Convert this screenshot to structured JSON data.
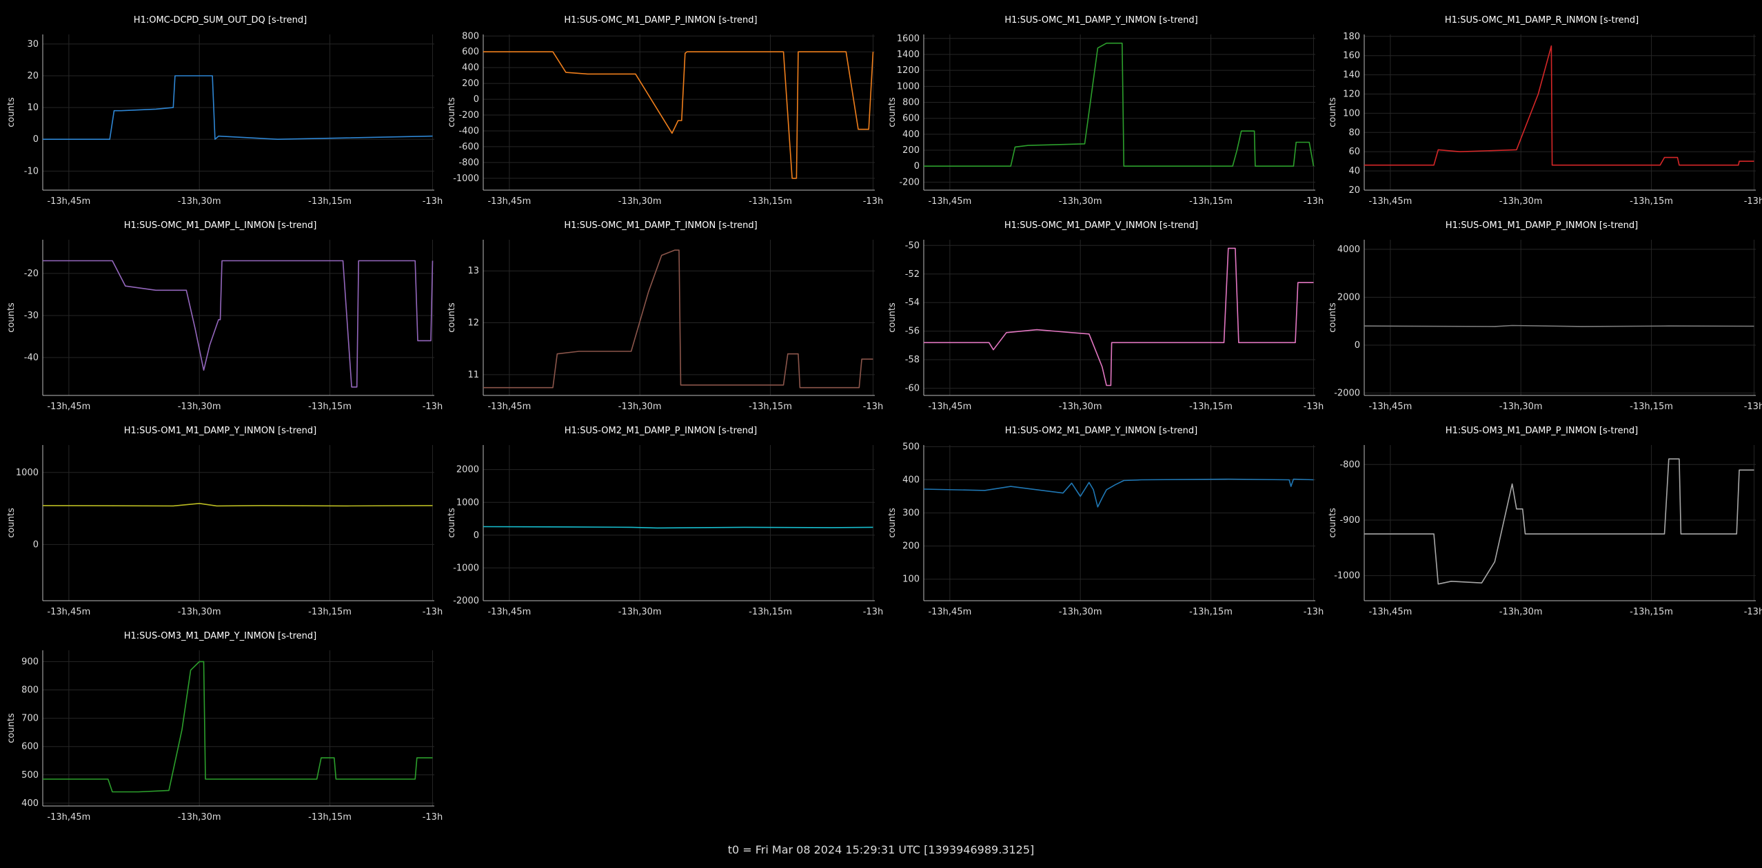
{
  "footer": "t0 = Fri Mar 08 2024 15:29:31 UTC [1393946989.3125]",
  "x_tick_labels": [
    "-13h,45m",
    "-13h,30m",
    "-13h,15m",
    "-13h"
  ],
  "chart_data": [
    {
      "type": "line",
      "title": "H1:OMC-DCPD_SUM_OUT_DQ [s-trend]",
      "ylabel": "counts",
      "color": "#2e86d4",
      "xlim": [
        -55,
        -10
      ],
      "ylim": [
        -16,
        33
      ],
      "yticks": [
        -10,
        0,
        10,
        20,
        30
      ],
      "x": [
        -55,
        -47.5,
        -47.3,
        -46.8,
        -46,
        -42,
        -40,
        -39.8,
        -35.5,
        -35.2,
        -34.8,
        -28,
        -10.2
      ],
      "y": [
        0,
        0,
        0,
        9,
        9,
        9.5,
        10,
        20,
        20,
        0,
        1,
        0,
        1
      ]
    },
    {
      "type": "line",
      "title": "H1:SUS-OMC_M1_DAMP_P_INMON [s-trend]",
      "ylabel": "counts",
      "color": "#f07f1c",
      "xlim": [
        -55,
        -10
      ],
      "ylim": [
        -1150,
        820
      ],
      "yticks": [
        -1000,
        -800,
        -600,
        -400,
        -200,
        0,
        200,
        400,
        600,
        800
      ],
      "x": [
        -55,
        -47,
        -45.5,
        -43,
        -37.5,
        -33.3,
        -32.6,
        -32.2,
        -31.8,
        -31.6,
        -20.5,
        -19.5,
        -19,
        -18.8,
        -13.5,
        -13.3,
        -11.9,
        -10.7,
        -10.2
      ],
      "y": [
        600,
        600,
        340,
        320,
        320,
        -430,
        -270,
        -270,
        580,
        600,
        600,
        -1000,
        -1000,
        600,
        600,
        600,
        -380,
        -380,
        600
      ]
    },
    {
      "type": "line",
      "title": "H1:SUS-OMC_M1_DAMP_Y_INMON [s-trend]",
      "ylabel": "counts",
      "color": "#2ca02c",
      "xlim": [
        -55,
        -10
      ],
      "ylim": [
        -300,
        1650
      ],
      "yticks": [
        -200,
        0,
        200,
        400,
        600,
        800,
        1000,
        1200,
        1400,
        1600
      ],
      "x": [
        -55,
        -45,
        -44.5,
        -43,
        -36.5,
        -35,
        -34,
        -32.2,
        -32,
        -19.5,
        -19,
        -18.5,
        -17,
        -16.9,
        -12.5,
        -12.2,
        -10.7,
        -10.2
      ],
      "y": [
        0,
        0,
        240,
        260,
        280,
        1480,
        1540,
        1540,
        0,
        0,
        200,
        440,
        440,
        0,
        0,
        300,
        300,
        0
      ]
    },
    {
      "type": "line",
      "title": "H1:SUS-OMC_M1_DAMP_R_INMON [s-trend]",
      "ylabel": "counts",
      "color": "#d62728",
      "xlim": [
        -55,
        -10
      ],
      "ylim": [
        20,
        182
      ],
      "yticks": [
        20,
        40,
        60,
        80,
        100,
        120,
        140,
        160,
        180
      ],
      "x": [
        -55,
        -47,
        -46.5,
        -44,
        -37.5,
        -35,
        -33.5,
        -33.4,
        -21,
        -20.5,
        -19,
        -18.8,
        -12,
        -11.9,
        -10.2
      ],
      "y": [
        46,
        46,
        62,
        60,
        62,
        120,
        170,
        46,
        46,
        54,
        54,
        46,
        46,
        50,
        50
      ]
    },
    {
      "type": "line",
      "title": "H1:SUS-OMC_M1_DAMP_L_INMON [s-trend]",
      "ylabel": "counts",
      "color": "#9467bd",
      "xlim": [
        -55,
        -10
      ],
      "ylim": [
        -49,
        -12
      ],
      "yticks": [
        -40,
        -30,
        -20
      ],
      "x": [
        -55,
        -47,
        -45.5,
        -42,
        -38.5,
        -37.5,
        -36.5,
        -35.8,
        -34.8,
        -34.6,
        -34.4,
        -20.5,
        -19.5,
        -18.9,
        -18.7,
        -12.2,
        -11.9,
        -10.4,
        -10.2
      ],
      "y": [
        -17,
        -17,
        -23,
        -24,
        -24,
        -33,
        -43,
        -37,
        -31,
        -31,
        -17,
        -17,
        -47,
        -47,
        -17,
        -17,
        -36,
        -36,
        -17
      ]
    },
    {
      "type": "line",
      "title": "H1:SUS-OMC_M1_DAMP_T_INMON [s-trend]",
      "ylabel": "counts",
      "color": "#8c564b",
      "xlim": [
        -55,
        -10
      ],
      "ylim": [
        10.6,
        13.6
      ],
      "yticks": [
        11,
        12,
        13
      ],
      "x": [
        -55,
        -47,
        -46.5,
        -44,
        -38,
        -36,
        -34.5,
        -33,
        -32.5,
        -32.3,
        -20.5,
        -20,
        -18.8,
        -18.6,
        -11.8,
        -11.5,
        -10.2
      ],
      "y": [
        10.75,
        10.75,
        11.4,
        11.45,
        11.45,
        12.6,
        13.3,
        13.4,
        13.4,
        10.8,
        10.8,
        11.4,
        11.4,
        10.75,
        10.75,
        11.3,
        11.3
      ]
    },
    {
      "type": "line",
      "title": "H1:SUS-OMC_M1_DAMP_V_INMON [s-trend]",
      "ylabel": "counts",
      "color": "#e377c2",
      "xlim": [
        -55,
        -10
      ],
      "ylim": [
        -60.5,
        -49.6
      ],
      "yticks": [
        -60,
        -58,
        -56,
        -54,
        -52,
        -50
      ],
      "x": [
        -55,
        -47.5,
        -47,
        -45.5,
        -42,
        -38,
        -36,
        -34.5,
        -34,
        -33.5,
        -33.4,
        -20.5,
        -20,
        -19.2,
        -18.8,
        -12.3,
        -12,
        -10.2
      ],
      "y": [
        -56.8,
        -56.8,
        -57.3,
        -56.1,
        -55.9,
        -56.1,
        -56.2,
        -58.5,
        -59.8,
        -59.8,
        -56.8,
        -56.8,
        -50.2,
        -50.2,
        -56.8,
        -56.8,
        -52.6,
        -52.6
      ]
    },
    {
      "type": "line",
      "title": "H1:SUS-OM1_M1_DAMP_P_INMON [s-trend]",
      "ylabel": "counts",
      "color": "#7f7f7f",
      "xlim": [
        -55,
        -10
      ],
      "ylim": [
        -2100,
        4400
      ],
      "yticks": [
        -2000,
        0,
        2000,
        4000
      ],
      "x": [
        -55,
        -40,
        -38,
        -30,
        -20,
        -10.2
      ],
      "y": [
        800,
        780,
        820,
        780,
        800,
        790
      ]
    },
    {
      "type": "line",
      "title": "H1:SUS-OM1_M1_DAMP_Y_INMON [s-trend]",
      "ylabel": "counts",
      "color": "#bcbd22",
      "xlim": [
        -55,
        -10
      ],
      "ylim": [
        -780,
        1380
      ],
      "yticks": [
        0,
        1000
      ],
      "x": [
        -55,
        -40,
        -37,
        -35,
        -30,
        -20,
        -10.2
      ],
      "y": [
        540,
        535,
        570,
        535,
        540,
        535,
        540
      ]
    },
    {
      "type": "line",
      "title": "H1:SUS-OM2_M1_DAMP_P_INMON [s-trend]",
      "ylabel": "counts",
      "color": "#17becf",
      "xlim": [
        -55,
        -10
      ],
      "ylim": [
        -2000,
        2750
      ],
      "yticks": [
        -2000,
        -1000,
        0,
        1000,
        2000
      ],
      "x": [
        -55,
        -45,
        -38,
        -35,
        -25,
        -15,
        -10.2
      ],
      "y": [
        260,
        250,
        240,
        220,
        240,
        230,
        240
      ]
    },
    {
      "type": "line",
      "title": "H1:SUS-OM2_M1_DAMP_Y_INMON [s-trend]",
      "ylabel": "counts",
      "color": "#1f77b4",
      "xlim": [
        -55,
        -10
      ],
      "ylim": [
        35,
        505
      ],
      "yticks": [
        100,
        200,
        300,
        400,
        500
      ],
      "x": [
        -55,
        -48,
        -45,
        -42,
        -39,
        -38,
        -37,
        -36,
        -35.5,
        -35,
        -34.5,
        -34,
        -33,
        -32,
        -30,
        -20,
        -13,
        -12.8,
        -12.5,
        -10.2
      ],
      "y": [
        372,
        368,
        380,
        370,
        360,
        390,
        350,
        392,
        370,
        318,
        345,
        370,
        385,
        398,
        400,
        402,
        400,
        380,
        402,
        400
      ]
    },
    {
      "type": "line",
      "title": "H1:SUS-OM3_M1_DAMP_P_INMON [s-trend]",
      "ylabel": "counts",
      "color": "#a8a8a8",
      "xlim": [
        -55,
        -10
      ],
      "ylim": [
        -1045,
        -765
      ],
      "yticks": [
        -1000,
        -900,
        -800
      ],
      "x": [
        -55,
        -47,
        -46.5,
        -45,
        -41.5,
        -40,
        -38,
        -37.5,
        -36.8,
        -36.5,
        -20.5,
        -20,
        -18.8,
        -18.6,
        -12.2,
        -11.9,
        -10.2
      ],
      "y": [
        -925,
        -925,
        -1015,
        -1010,
        -1013,
        -975,
        -835,
        -880,
        -880,
        -925,
        -925,
        -790,
        -790,
        -925,
        -925,
        -810,
        -810
      ]
    },
    {
      "type": "line",
      "title": "H1:SUS-OM3_M1_DAMP_Y_INMON [s-trend]",
      "ylabel": "counts",
      "color": "#2ca02c",
      "xlim": [
        -55,
        -10
      ],
      "ylim": [
        390,
        940
      ],
      "yticks": [
        400,
        500,
        600,
        700,
        800,
        900
      ],
      "x": [
        -55,
        -47.5,
        -47,
        -44,
        -40.5,
        -39,
        -38,
        -37,
        -36.5,
        -36.3,
        -23.5,
        -23,
        -21.5,
        -21.3,
        -12.2,
        -12,
        -10.2
      ],
      "y": [
        485,
        485,
        440,
        440,
        445,
        660,
        870,
        900,
        900,
        485,
        485,
        560,
        560,
        485,
        485,
        560,
        560
      ]
    }
  ]
}
